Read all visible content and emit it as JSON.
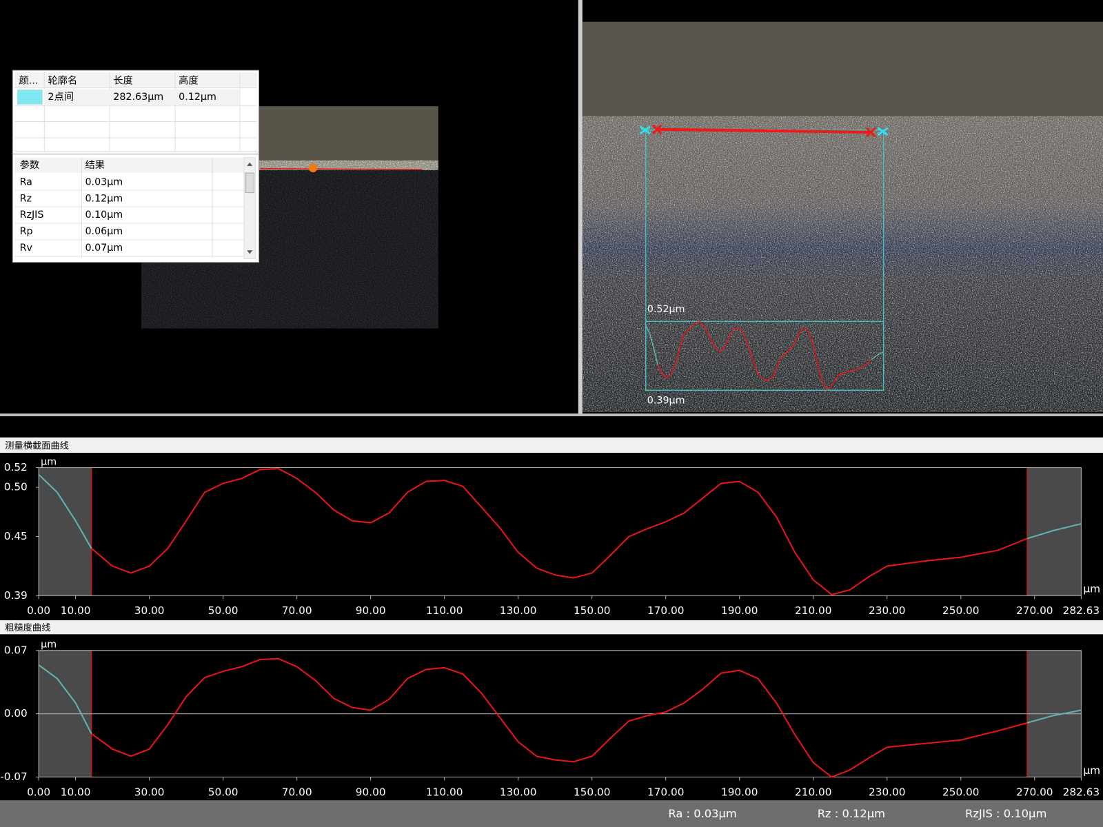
{
  "left_table": {
    "headers": [
      "颜...",
      "轮廓名",
      "长度",
      "高度"
    ],
    "rows": [
      {
        "color": "#7fe8f0",
        "name": "2点间",
        "length": "282.63µm",
        "height": "0.12µm"
      }
    ]
  },
  "param_table": {
    "headers": [
      "参数",
      "结果"
    ],
    "rows": [
      [
        "Ra",
        "0.03µm"
      ],
      [
        "Rz",
        "0.12µm"
      ],
      [
        "RzJIS",
        "0.10µm"
      ],
      [
        "Rp",
        "0.06µm"
      ],
      [
        "Rv",
        "0.07µm"
      ]
    ]
  },
  "overlay": {
    "max_label": "0.52µm",
    "min_label": "0.39µm"
  },
  "chart_data": [
    {
      "type": "line",
      "title": "测量横截面曲线",
      "y_unit": "µm",
      "x_unit": "µm",
      "x": [
        0,
        5,
        10,
        14.3,
        20,
        25,
        30,
        35,
        40,
        45,
        50,
        55,
        60,
        65,
        70,
        75,
        80,
        85,
        90,
        95,
        100,
        105,
        110,
        115,
        120,
        125,
        130,
        135,
        140,
        145,
        150,
        155,
        160,
        165,
        170,
        175,
        180,
        185,
        190,
        195,
        200,
        205,
        210,
        215,
        220,
        225,
        230,
        240,
        250,
        260,
        268,
        275,
        282.63
      ],
      "series": [
        {
          "color": "#e8141c",
          "values": [
            null,
            null,
            null,
            0.438,
            0.42,
            0.413,
            0.42,
            0.438,
            0.466,
            0.495,
            0.504,
            0.509,
            0.518,
            0.519,
            0.509,
            0.495,
            0.477,
            0.466,
            0.464,
            0.474,
            0.495,
            0.506,
            0.507,
            0.501,
            0.48,
            0.459,
            0.434,
            0.418,
            0.411,
            0.408,
            0.413,
            0.431,
            0.45,
            0.458,
            0.465,
            0.474,
            0.489,
            0.504,
            0.506,
            0.495,
            0.47,
            0.434,
            0.406,
            0.391,
            0.396,
            0.409,
            0.42,
            0.425,
            0.429,
            0.436,
            0.448,
            null,
            null
          ]
        },
        {
          "color": "#5fb4b4",
          "values": [
            0.513,
            0.495,
            0.466,
            0.438,
            null,
            null,
            null,
            null,
            null,
            null,
            null,
            null,
            null,
            null,
            null,
            null,
            null,
            null,
            null,
            null,
            null,
            null,
            null,
            null,
            null,
            null,
            null,
            null,
            null,
            null,
            null,
            null,
            null,
            null,
            null,
            null,
            null,
            null,
            null,
            null,
            null,
            null,
            null,
            null,
            null,
            null,
            null,
            null,
            null,
            null,
            0.448,
            0.456,
            0.463
          ]
        }
      ],
      "xlim": [
        0,
        282.63
      ],
      "ylim": [
        0.39,
        0.52
      ],
      "xticks": [
        {
          "value": 0,
          "label": "0.00"
        },
        {
          "value": 10,
          "label": "10.00"
        },
        {
          "value": 30,
          "label": "30.00"
        },
        {
          "value": 50,
          "label": "50.00"
        },
        {
          "value": 70,
          "label": "70.00"
        },
        {
          "value": 90,
          "label": "90.00"
        },
        {
          "value": 110,
          "label": "110.00"
        },
        {
          "value": 130,
          "label": "130.00"
        },
        {
          "value": 150,
          "label": "150.00"
        },
        {
          "value": 170,
          "label": "170.00"
        },
        {
          "value": 190,
          "label": "190.00"
        },
        {
          "value": 210,
          "label": "210.00"
        },
        {
          "value": 230,
          "label": "230.00"
        },
        {
          "value": 250,
          "label": "250.00"
        },
        {
          "value": 270,
          "label": "270.00"
        },
        282.63
      ],
      "yticks": [
        0.39,
        0.45,
        {
          "value": 0.5,
          "label": "0.50"
        },
        0.52
      ],
      "grid": false
    },
    {
      "type": "line",
      "title": "粗糙度曲线",
      "y_unit": "µm",
      "x_unit": "µm",
      "x": [
        0,
        5,
        10,
        14.3,
        20,
        25,
        30,
        35,
        40,
        45,
        50,
        55,
        60,
        65,
        70,
        75,
        80,
        85,
        90,
        95,
        100,
        105,
        110,
        115,
        120,
        125,
        130,
        135,
        140,
        145,
        150,
        155,
        160,
        165,
        170,
        175,
        180,
        185,
        190,
        195,
        200,
        205,
        210,
        215,
        220,
        225,
        230,
        240,
        250,
        260,
        268,
        275,
        282.63
      ],
      "series": [
        {
          "color": "#e8141c",
          "values": [
            null,
            null,
            null,
            -0.022,
            -0.039,
            -0.047,
            -0.039,
            -0.012,
            0.019,
            0.04,
            0.047,
            0.052,
            0.06,
            0.061,
            0.052,
            0.037,
            0.017,
            0.007,
            0.004,
            0.016,
            0.039,
            0.049,
            0.051,
            0.044,
            0.023,
            -0.004,
            -0.031,
            -0.047,
            -0.051,
            -0.053,
            -0.047,
            -0.027,
            -0.008,
            -0.002,
            0.002,
            0.012,
            0.027,
            0.045,
            0.048,
            0.039,
            0.012,
            -0.023,
            -0.054,
            -0.07,
            -0.062,
            -0.049,
            -0.037,
            -0.033,
            -0.029,
            -0.019,
            -0.01,
            null,
            null
          ]
        },
        {
          "color": "#5fb4b4",
          "values": [
            0.054,
            0.039,
            0.012,
            -0.022,
            null,
            null,
            null,
            null,
            null,
            null,
            null,
            null,
            null,
            null,
            null,
            null,
            null,
            null,
            null,
            null,
            null,
            null,
            null,
            null,
            null,
            null,
            null,
            null,
            null,
            null,
            null,
            null,
            null,
            null,
            null,
            null,
            null,
            null,
            null,
            null,
            null,
            null,
            null,
            null,
            null,
            null,
            null,
            null,
            null,
            null,
            -0.01,
            -0.002,
            0.004
          ]
        }
      ],
      "xlim": [
        0,
        282.63
      ],
      "ylim": [
        -0.07,
        0.07
      ],
      "xticks": [
        {
          "value": 0,
          "label": "0.00"
        },
        {
          "value": 10,
          "label": "10.00"
        },
        {
          "value": 30,
          "label": "30.00"
        },
        {
          "value": 50,
          "label": "50.00"
        },
        {
          "value": 70,
          "label": "70.00"
        },
        {
          "value": 90,
          "label": "90.00"
        },
        {
          "value": 110,
          "label": "110.00"
        },
        {
          "value": 130,
          "label": "130.00"
        },
        {
          "value": 150,
          "label": "150.00"
        },
        {
          "value": 170,
          "label": "170.00"
        },
        {
          "value": 190,
          "label": "190.00"
        },
        {
          "value": 210,
          "label": "210.00"
        },
        {
          "value": 230,
          "label": "230.00"
        },
        {
          "value": 250,
          "label": "250.00"
        },
        {
          "value": 270,
          "label": "270.00"
        },
        282.63
      ],
      "yticks": [
        -0.07,
        {
          "value": 0,
          "label": "0.00"
        },
        0.07
      ],
      "grid": true
    }
  ],
  "status": [
    "Ra : 0.03µm",
    "Rz : 0.12µm",
    "RzJIS : 0.10µm"
  ]
}
